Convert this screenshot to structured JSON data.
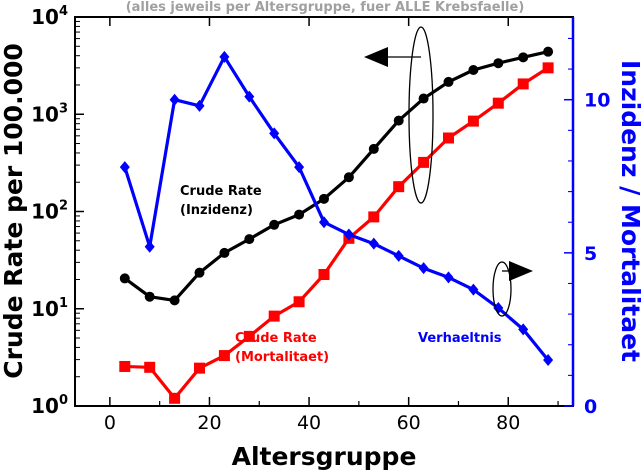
{
  "chart_data": {
    "type": "line",
    "subtitle": "(alles jeweils per Altersgruppe, fuer ALLE Krebsfaelle)",
    "xlabel": "Altersgruppe",
    "ylabel_left": "Crude Rate per 100.000",
    "ylabel_right": "Inzidenz / Mortalitaet",
    "x_ticks": [
      "0",
      "20",
      "40",
      "60",
      "80"
    ],
    "y_left_ticks": [
      {
        "base": "10",
        "exp": "0"
      },
      {
        "base": "10",
        "exp": "1"
      },
      {
        "base": "10",
        "exp": "2"
      },
      {
        "base": "10",
        "exp": "3"
      },
      {
        "base": "10",
        "exp": "4"
      }
    ],
    "y_right_ticks": [
      "0",
      "5",
      "10"
    ],
    "xlim": [
      -7,
      93
    ],
    "ylim_left_log10": [
      0,
      4
    ],
    "ylim_right": [
      0,
      12.7
    ],
    "y_left_scale": "log",
    "x": [
      3,
      8,
      13,
      18,
      23,
      28,
      33,
      38,
      43,
      48,
      53,
      58,
      63,
      68,
      73,
      78,
      83,
      88
    ],
    "series": [
      {
        "name": "Crude Rate (Inzidenz)",
        "axis": "left",
        "color": "#000000",
        "marker": "circle",
        "values": [
          20.5,
          13.3,
          12.2,
          23.5,
          37.5,
          52,
          73,
          93,
          135,
          225,
          440,
          860,
          1450,
          2150,
          2850,
          3350,
          3850,
          4400
        ]
      },
      {
        "name": "Crude Rate (Mortalitaet)",
        "axis": "left",
        "color": "#ff0000",
        "marker": "square",
        "values": [
          2.55,
          2.5,
          1.2,
          2.45,
          3.3,
          5.2,
          8.4,
          11.8,
          22.5,
          53,
          88,
          180,
          320,
          570,
          850,
          1300,
          2050,
          3000
        ]
      },
      {
        "name": "Verhaeltnis",
        "axis": "right",
        "color": "#0000ff",
        "marker": "diamond",
        "values": [
          7.8,
          5.2,
          10.0,
          9.8,
          11.4,
          10.1,
          8.9,
          7.8,
          6.0,
          5.6,
          5.3,
          4.9,
          4.5,
          4.2,
          3.8,
          3.2,
          2.5,
          1.5
        ]
      }
    ],
    "labels": {
      "inzidenz_line1": "Crude Rate",
      "inzidenz_line2": "(Inzidenz)",
      "mortalitaet_line1": "Crude Rate",
      "mortalitaet_line2": "(Mortalitaet)",
      "verhaeltnis": "Verhaeltnis"
    },
    "grid": false,
    "legend": "none"
  }
}
